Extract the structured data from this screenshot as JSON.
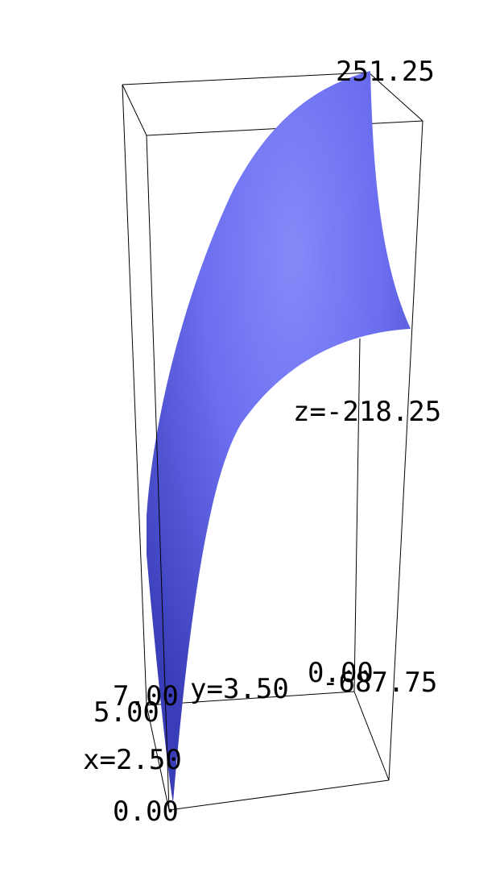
{
  "chart_data": {
    "type": "surface3d",
    "colors": {
      "surface": "#6b6ff0",
      "surface_light": "#8589f8",
      "surface_dark": "#3a3db8",
      "box_edges": "#000000",
      "background": "#ffffff"
    },
    "x_axis": {
      "label": "x=2.50",
      "min": "0.00",
      "max": "5.00"
    },
    "y_axis": {
      "label": "y=3.50",
      "min": "0.00",
      "max": "7.00"
    },
    "z_axis": {
      "label": "z=-218.25",
      "min": "-687.75",
      "max": "251.25"
    }
  }
}
